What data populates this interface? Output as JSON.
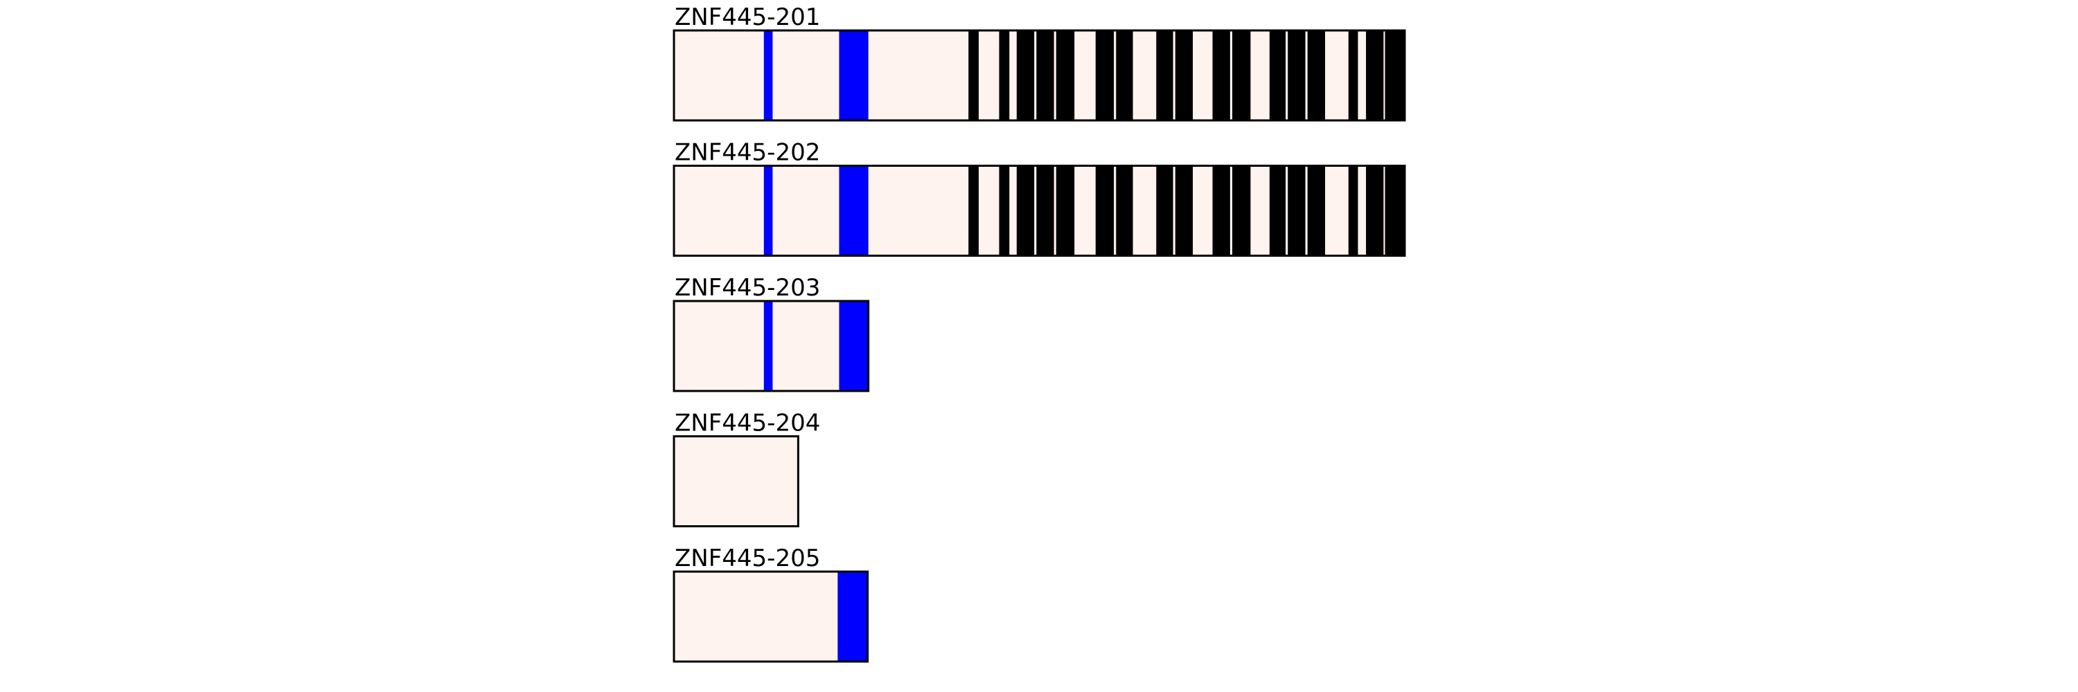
{
  "chart_data": {
    "type": "diagram",
    "scale_note": "",
    "colors": {
      "background": "#fef3ee",
      "blue_feature": "#0000ff",
      "black_feature": "#000000",
      "outline": "#000000"
    },
    "transcripts": [
      {
        "name": "ZNF445-201",
        "length": 100,
        "features": [
          {
            "color": "blue",
            "start": 12.3,
            "end": 13.5
          },
          {
            "color": "blue",
            "start": 22.6,
            "end": 26.6
          },
          {
            "color": "black",
            "start": 40.3,
            "end": 41.7
          },
          {
            "color": "black",
            "start": 44.5,
            "end": 45.9
          },
          {
            "color": "black",
            "start": 46.9,
            "end": 49.3
          },
          {
            "color": "black",
            "start": 49.6,
            "end": 52.0
          },
          {
            "color": "black",
            "start": 52.3,
            "end": 54.8
          },
          {
            "color": "black",
            "start": 57.7,
            "end": 60.2
          },
          {
            "color": "black",
            "start": 60.5,
            "end": 62.8
          },
          {
            "color": "black",
            "start": 66.0,
            "end": 68.3
          },
          {
            "color": "black",
            "start": 68.6,
            "end": 71.0
          },
          {
            "color": "black",
            "start": 73.7,
            "end": 76.1
          },
          {
            "color": "black",
            "start": 76.4,
            "end": 78.9
          },
          {
            "color": "black",
            "start": 81.5,
            "end": 83.7
          },
          {
            "color": "black",
            "start": 84.0,
            "end": 86.4
          },
          {
            "color": "black",
            "start": 86.7,
            "end": 89.1
          },
          {
            "color": "black",
            "start": 92.3,
            "end": 93.6
          },
          {
            "color": "black",
            "start": 94.7,
            "end": 97.1
          },
          {
            "color": "black",
            "start": 97.3,
            "end": 100
          }
        ]
      },
      {
        "name": "ZNF445-202",
        "length": 100,
        "features": [
          {
            "color": "blue",
            "start": 12.3,
            "end": 13.5
          },
          {
            "color": "blue",
            "start": 22.6,
            "end": 26.6
          },
          {
            "color": "black",
            "start": 40.3,
            "end": 41.7
          },
          {
            "color": "black",
            "start": 44.5,
            "end": 45.9
          },
          {
            "color": "black",
            "start": 46.9,
            "end": 49.3
          },
          {
            "color": "black",
            "start": 49.6,
            "end": 52.0
          },
          {
            "color": "black",
            "start": 52.3,
            "end": 54.8
          },
          {
            "color": "black",
            "start": 57.7,
            "end": 60.2
          },
          {
            "color": "black",
            "start": 60.5,
            "end": 62.8
          },
          {
            "color": "black",
            "start": 66.0,
            "end": 68.3
          },
          {
            "color": "black",
            "start": 68.6,
            "end": 71.0
          },
          {
            "color": "black",
            "start": 73.7,
            "end": 76.1
          },
          {
            "color": "black",
            "start": 76.4,
            "end": 78.9
          },
          {
            "color": "black",
            "start": 81.5,
            "end": 83.7
          },
          {
            "color": "black",
            "start": 84.0,
            "end": 86.4
          },
          {
            "color": "black",
            "start": 86.7,
            "end": 89.1
          },
          {
            "color": "black",
            "start": 92.3,
            "end": 93.6
          },
          {
            "color": "black",
            "start": 94.7,
            "end": 97.1
          },
          {
            "color": "black",
            "start": 97.3,
            "end": 100
          }
        ]
      },
      {
        "name": "ZNF445-203",
        "length": 26.6,
        "features": [
          {
            "color": "blue",
            "start": 12.3,
            "end": 13.5
          },
          {
            "color": "blue",
            "start": 22.6,
            "end": 26.6
          }
        ]
      },
      {
        "name": "ZNF445-204",
        "length": 17.0,
        "features": []
      },
      {
        "name": "ZNF445-205",
        "length": 26.5,
        "features": [
          {
            "color": "blue",
            "start": 22.4,
            "end": 26.5
          }
        ]
      }
    ]
  }
}
